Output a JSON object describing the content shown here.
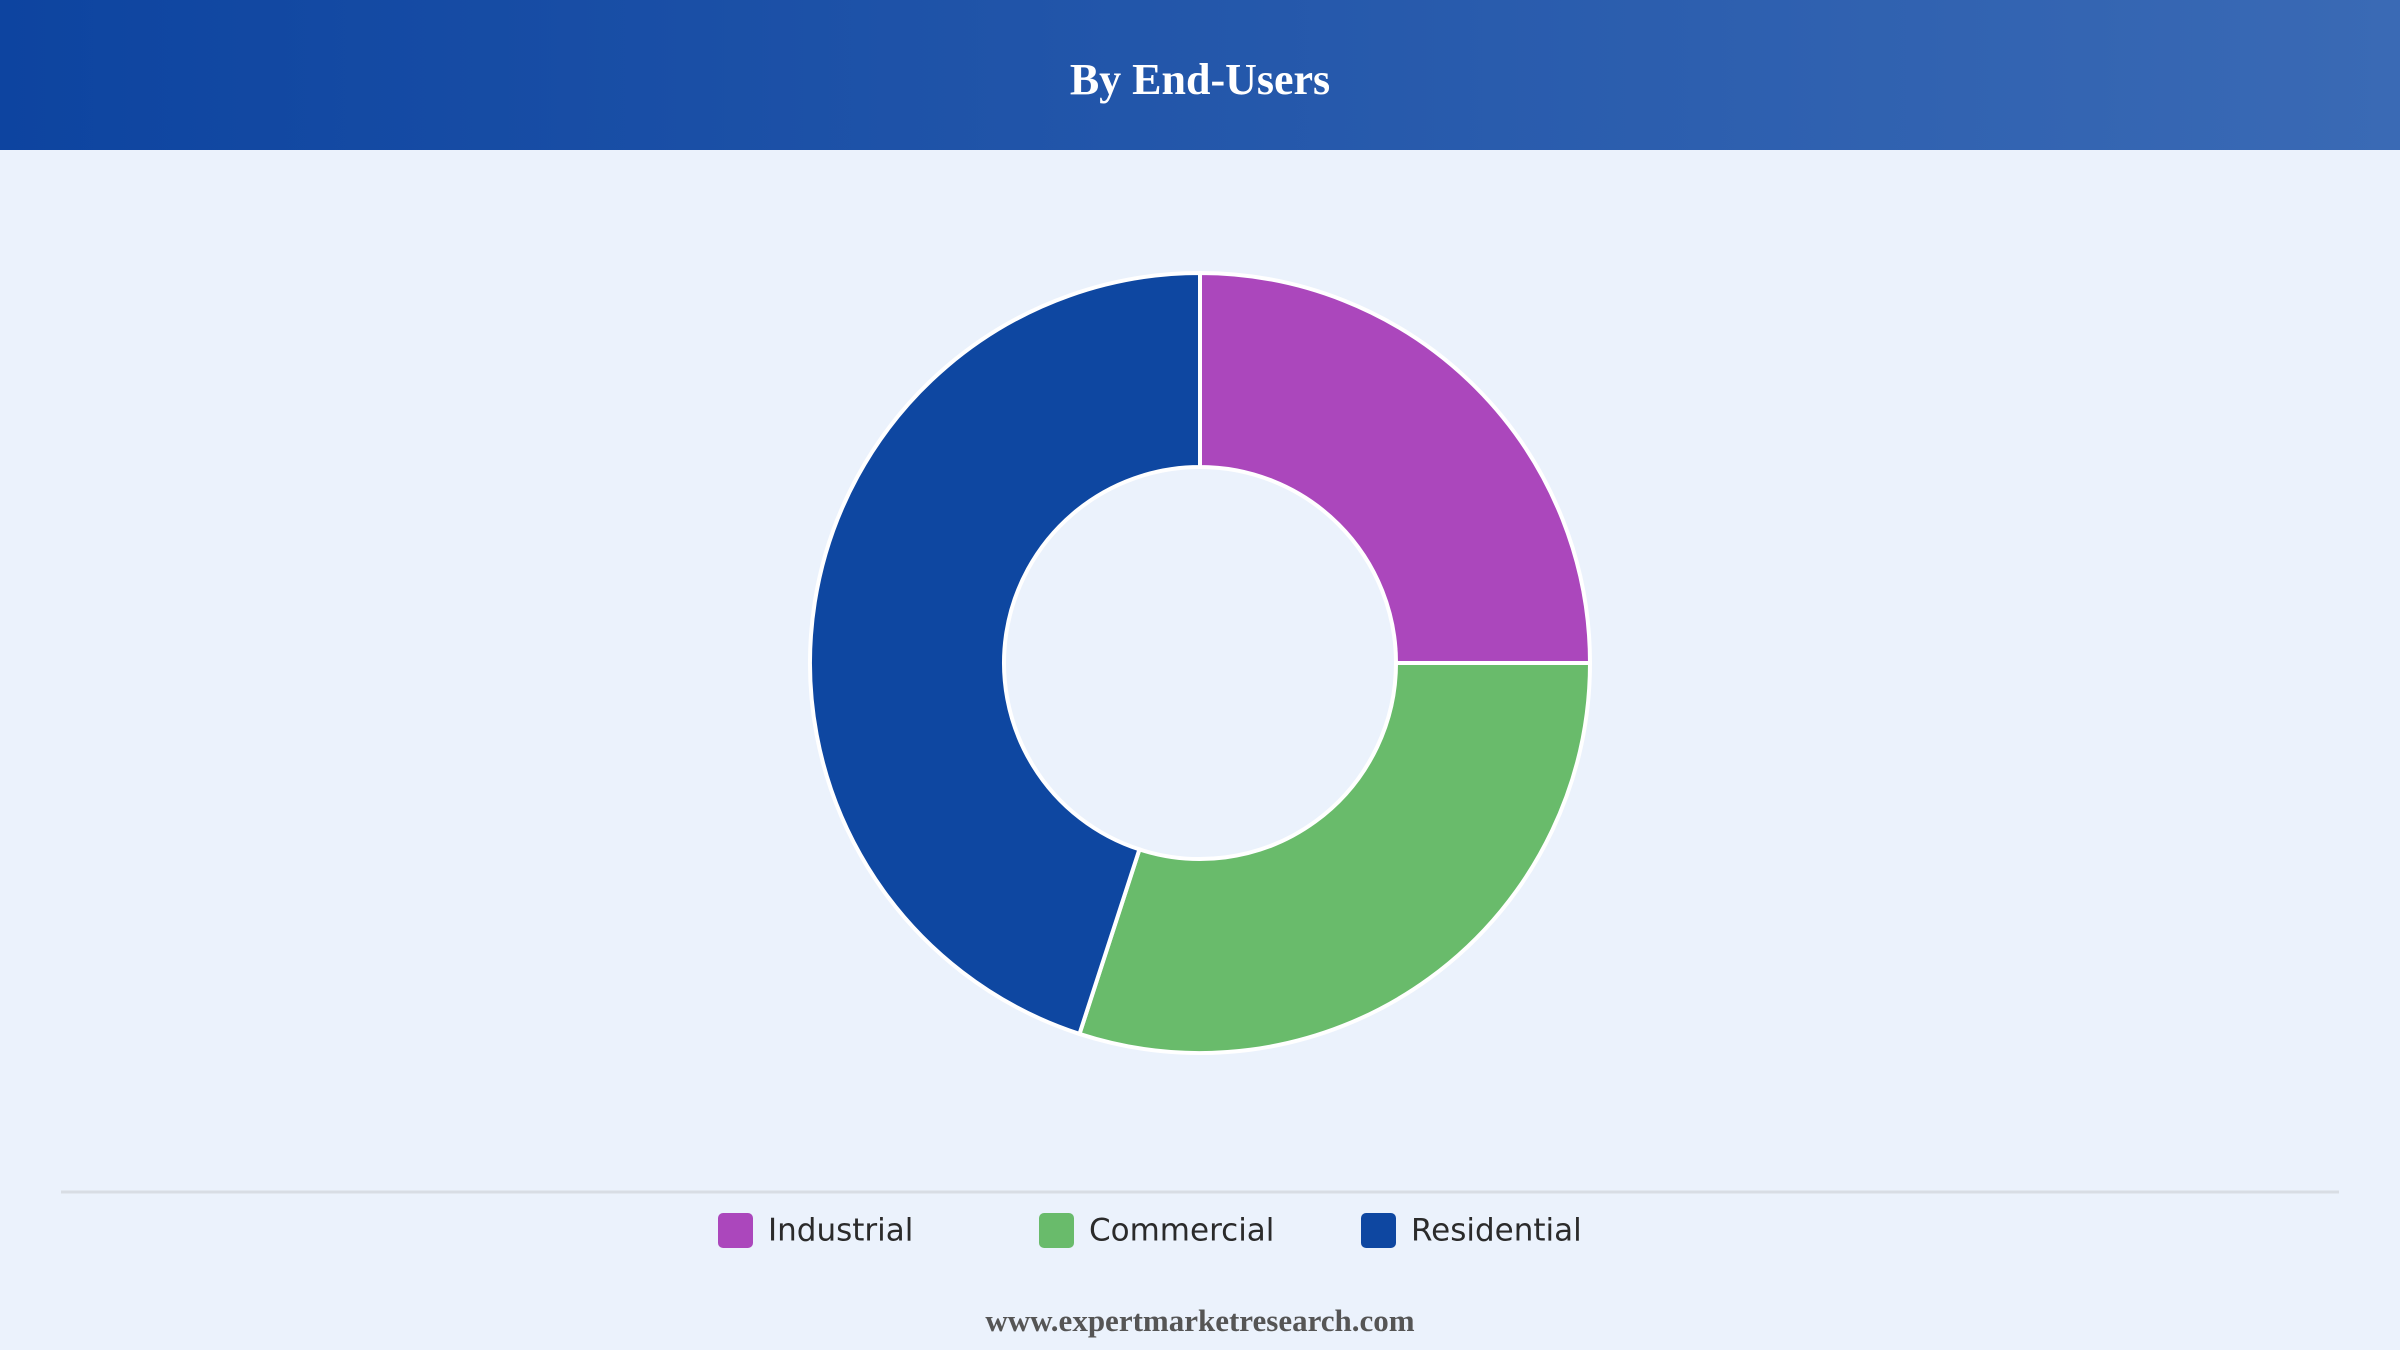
{
  "chart_data": {
    "type": "donut",
    "title": "By End-Users",
    "categories": [
      "Industrial",
      "Commercial",
      "Residential"
    ],
    "values": [
      25,
      30,
      45
    ],
    "colors": [
      "#ab47bc",
      "#69bb6b",
      "#0e47a1"
    ],
    "source": "www.expertmarketresearch.com"
  }
}
